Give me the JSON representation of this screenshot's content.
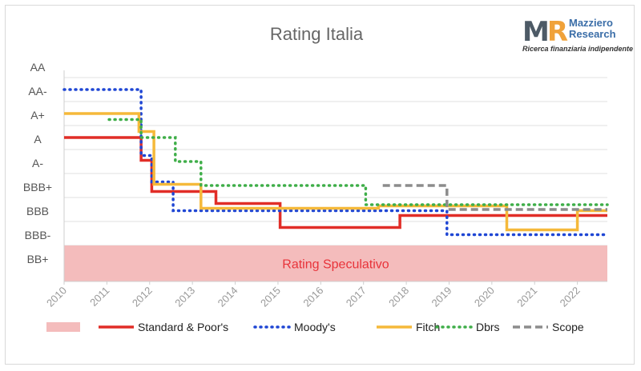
{
  "chart_data": {
    "type": "line",
    "title": "Rating Italia",
    "y_categories": [
      "BB+",
      "BBB-",
      "BBB",
      "BBB+",
      "A-",
      "A",
      "A+",
      "AA-",
      "AA"
    ],
    "x_ticks": [
      "2010",
      "2011",
      "2012",
      "2013",
      "2014",
      "2015",
      "2016",
      "2017",
      "2018",
      "2019",
      "2020",
      "2021",
      "2022"
    ],
    "xlim": [
      2010,
      2022.7
    ],
    "band": {
      "label": "Rating Speculativo",
      "color": "#f4bcbc",
      "label_color": "#e8333a",
      "y_from": 0,
      "y_to": 1.5
    },
    "series": [
      {
        "name": "Standard & Poor's",
        "color": "#e12d27",
        "style": "solid",
        "points": [
          [
            2010,
            6
          ],
          [
            2011.8,
            6
          ],
          [
            2011.8,
            5.05
          ],
          [
            2012.05,
            5.05
          ],
          [
            2012.05,
            3.75
          ],
          [
            2013.55,
            3.75
          ],
          [
            2013.55,
            3.25
          ],
          [
            2015.05,
            3.25
          ],
          [
            2015.05,
            2.25
          ],
          [
            2017.85,
            2.25
          ],
          [
            2017.85,
            2.75
          ],
          [
            2022.7,
            2.75
          ]
        ]
      },
      {
        "name": "Moody's",
        "color": "#1f46d4",
        "style": "dotted",
        "points": [
          [
            2010,
            8
          ],
          [
            2011.8,
            8
          ],
          [
            2011.8,
            5.25
          ],
          [
            2012.05,
            5.25
          ],
          [
            2012.05,
            4.15
          ],
          [
            2012.55,
            4.15
          ],
          [
            2012.55,
            2.95
          ],
          [
            2018.95,
            2.95
          ],
          [
            2018.95,
            1.95
          ],
          [
            2022.7,
            1.95
          ]
        ]
      },
      {
        "name": "Fitch",
        "color": "#f5b93a",
        "style": "solid",
        "points": [
          [
            2010,
            7
          ],
          [
            2011.75,
            7
          ],
          [
            2011.75,
            6.25
          ],
          [
            2012.1,
            6.25
          ],
          [
            2012.1,
            4.05
          ],
          [
            2013.2,
            4.05
          ],
          [
            2013.2,
            3.05
          ],
          [
            2017.35,
            3.05
          ],
          [
            2017.35,
            3.15
          ],
          [
            2020.35,
            3.15
          ],
          [
            2020.35,
            2.15
          ],
          [
            2022.0,
            2.15
          ],
          [
            2022.0,
            2.95
          ],
          [
            2022.7,
            2.95
          ]
        ]
      },
      {
        "name": "Dbrs",
        "color": "#3fae49",
        "style": "dotted",
        "points": [
          [
            2011.05,
            6.75
          ],
          [
            2011.8,
            6.75
          ],
          [
            2011.8,
            6
          ],
          [
            2012.6,
            6
          ],
          [
            2012.6,
            5
          ],
          [
            2013.2,
            5
          ],
          [
            2013.2,
            4
          ],
          [
            2017.05,
            4
          ],
          [
            2017.05,
            3.2
          ],
          [
            2022.7,
            3.2
          ]
        ]
      },
      {
        "name": "Scope",
        "color": "#8c8c8c",
        "style": "dashed",
        "points": [
          [
            2017.45,
            4
          ],
          [
            2018.95,
            4
          ],
          [
            2018.95,
            3
          ],
          [
            2022.7,
            3
          ]
        ]
      }
    ]
  },
  "logo": {
    "mark_m": "M",
    "mark_r": "R",
    "name_line1": "Mazziero",
    "name_line2": "Research",
    "tagline": "Ricerca finanziaria indipendente"
  }
}
